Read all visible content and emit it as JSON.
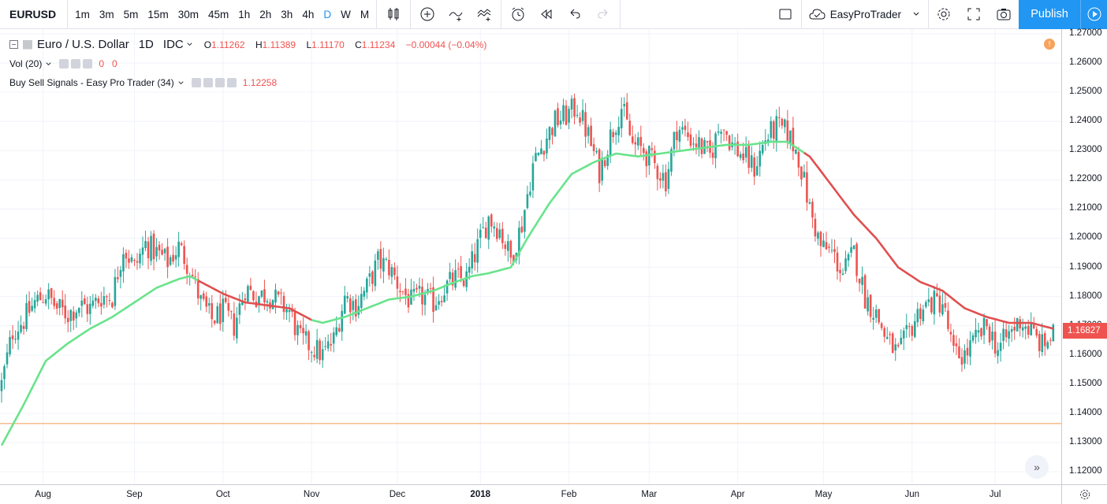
{
  "toolbar": {
    "symbol": "EURUSD",
    "intervals": [
      "1m",
      "3m",
      "5m",
      "15m",
      "30m",
      "45m",
      "1h",
      "2h",
      "3h",
      "4h",
      "D",
      "W",
      "M"
    ],
    "active_interval": "D",
    "layout_name": "EasyProTrader",
    "publish_label": "Publish",
    "icons": [
      "candle-style-icon",
      "add-indicator-icon",
      "compare-icon",
      "indicators-icon",
      "alert-icon",
      "replay-icon",
      "undo-icon",
      "redo-icon"
    ]
  },
  "legend": {
    "title": "Euro / U.S. Dollar",
    "interval": "1D",
    "exchange": "IDC",
    "open_label": "O",
    "open": "1.11262",
    "high_label": "H",
    "high": "1.11389",
    "low_label": "L",
    "low": "1.11170",
    "close_label": "C",
    "close": "1.11234",
    "change": "−0.00044 (−0.04%)",
    "vol_label": "Vol (20)",
    "vol_value1": "0",
    "vol_value2": "0",
    "indicator_label": "Buy Sell Signals - Easy Pro Trader (34)",
    "indicator_value": "1.12258"
  },
  "last_price": "1.16827",
  "colors": {
    "up": "#26a69a",
    "down": "#ef5350",
    "ma_bull": "#69e38b",
    "ma_bear": "#e04f4f",
    "accent": "#2196f3",
    "hline": "#f19a52"
  },
  "chart_data": {
    "type": "candlestick",
    "ylim": [
      1.115,
      1.27
    ],
    "price_ticks": [
      "1.27000",
      "1.26000",
      "1.25000",
      "1.24000",
      "1.23000",
      "1.22000",
      "1.21000",
      "1.20000",
      "1.19000",
      "1.18000",
      "1.17000",
      "1.16000",
      "1.15000",
      "1.14000",
      "1.13000",
      "1.12000"
    ],
    "time_ticks": [
      {
        "label": "Aug",
        "bar": 15
      },
      {
        "label": "Sep",
        "bar": 48
      },
      {
        "label": "Oct",
        "bar": 80
      },
      {
        "label": "Nov",
        "bar": 112
      },
      {
        "label": "Dec",
        "bar": 143
      },
      {
        "label": "2018",
        "bar": 173,
        "bold": true
      },
      {
        "label": "Feb",
        "bar": 205
      },
      {
        "label": "Mar",
        "bar": 234
      },
      {
        "label": "Apr",
        "bar": 266
      },
      {
        "label": "May",
        "bar": 297
      },
      {
        "label": "Jun",
        "bar": 329
      },
      {
        "label": "Jul",
        "bar": 359
      }
    ],
    "horizontal_line": 1.1365,
    "close_anchors": [
      [
        0,
        1.15
      ],
      [
        4,
        1.168
      ],
      [
        8,
        1.172
      ],
      [
        12,
        1.178
      ],
      [
        16,
        1.181
      ],
      [
        20,
        1.176
      ],
      [
        24,
        1.174
      ],
      [
        28,
        1.177
      ],
      [
        32,
        1.176
      ],
      [
        36,
        1.18
      ],
      [
        40,
        1.18
      ],
      [
        44,
        1.197
      ],
      [
        48,
        1.19
      ],
      [
        52,
        1.198
      ],
      [
        56,
        1.195
      ],
      [
        60,
        1.192
      ],
      [
        64,
        1.197
      ],
      [
        68,
        1.19
      ],
      [
        72,
        1.178
      ],
      [
        76,
        1.172
      ],
      [
        80,
        1.175
      ],
      [
        84,
        1.17
      ],
      [
        88,
        1.183
      ],
      [
        92,
        1.18
      ],
      [
        96,
        1.181
      ],
      [
        100,
        1.178
      ],
      [
        104,
        1.175
      ],
      [
        108,
        1.165
      ],
      [
        112,
        1.163
      ],
      [
        116,
        1.16
      ],
      [
        120,
        1.165
      ],
      [
        124,
        1.18
      ],
      [
        128,
        1.177
      ],
      [
        132,
        1.183
      ],
      [
        136,
        1.192
      ],
      [
        140,
        1.19
      ],
      [
        144,
        1.183
      ],
      [
        148,
        1.178
      ],
      [
        152,
        1.18
      ],
      [
        156,
        1.178
      ],
      [
        160,
        1.183
      ],
      [
        164,
        1.186
      ],
      [
        168,
        1.186
      ],
      [
        172,
        1.197
      ],
      [
        176,
        1.207
      ],
      [
        180,
        1.203
      ],
      [
        184,
        1.193
      ],
      [
        188,
        1.205
      ],
      [
        192,
        1.225
      ],
      [
        196,
        1.233
      ],
      [
        200,
        1.24
      ],
      [
        204,
        1.242
      ],
      [
        208,
        1.245
      ],
      [
        212,
        1.235
      ],
      [
        216,
        1.223
      ],
      [
        220,
        1.235
      ],
      [
        224,
        1.245
      ],
      [
        228,
        1.232
      ],
      [
        232,
        1.23
      ],
      [
        236,
        1.225
      ],
      [
        240,
        1.22
      ],
      [
        244,
        1.238
      ],
      [
        248,
        1.235
      ],
      [
        252,
        1.232
      ],
      [
        256,
        1.228
      ],
      [
        260,
        1.24
      ],
      [
        264,
        1.232
      ],
      [
        268,
        1.228
      ],
      [
        272,
        1.224
      ],
      [
        276,
        1.234
      ],
      [
        280,
        1.238
      ],
      [
        284,
        1.236
      ],
      [
        288,
        1.228
      ],
      [
        292,
        1.21
      ],
      [
        296,
        1.197
      ],
      [
        300,
        1.195
      ],
      [
        304,
        1.188
      ],
      [
        308,
        1.195
      ],
      [
        312,
        1.18
      ],
      [
        316,
        1.174
      ],
      [
        320,
        1.165
      ],
      [
        324,
        1.16
      ],
      [
        328,
        1.168
      ],
      [
        332,
        1.176
      ],
      [
        336,
        1.178
      ],
      [
        340,
        1.178
      ],
      [
        344,
        1.16
      ],
      [
        348,
        1.16
      ],
      [
        352,
        1.165
      ],
      [
        356,
        1.17
      ],
      [
        360,
        1.162
      ],
      [
        364,
        1.167
      ],
      [
        368,
        1.172
      ],
      [
        372,
        1.168
      ],
      [
        376,
        1.163
      ],
      [
        380,
        1.167
      ]
    ],
    "ma_anchors": [
      [
        0,
        1.129
      ],
      [
        8,
        1.143
      ],
      [
        16,
        1.158
      ],
      [
        24,
        1.164
      ],
      [
        32,
        1.169
      ],
      [
        40,
        1.173
      ],
      [
        48,
        1.178
      ],
      [
        56,
        1.183
      ],
      [
        64,
        1.186
      ],
      [
        68,
        1.187
      ],
      [
        72,
        1.185
      ],
      [
        80,
        1.181
      ],
      [
        88,
        1.178
      ],
      [
        96,
        1.177
      ],
      [
        104,
        1.176
      ],
      [
        112,
        1.172
      ],
      [
        116,
        1.171
      ],
      [
        124,
        1.173
      ],
      [
        132,
        1.176
      ],
      [
        140,
        1.179
      ],
      [
        148,
        1.18
      ],
      [
        156,
        1.182
      ],
      [
        164,
        1.185
      ],
      [
        170,
        1.187
      ],
      [
        176,
        1.188
      ],
      [
        184,
        1.19
      ],
      [
        190,
        1.2
      ],
      [
        198,
        1.212
      ],
      [
        206,
        1.222
      ],
      [
        214,
        1.226
      ],
      [
        222,
        1.229
      ],
      [
        230,
        1.228
      ],
      [
        238,
        1.229
      ],
      [
        246,
        1.23
      ],
      [
        254,
        1.231
      ],
      [
        262,
        1.232
      ],
      [
        270,
        1.232
      ],
      [
        278,
        1.233
      ],
      [
        284,
        1.233
      ],
      [
        292,
        1.228
      ],
      [
        300,
        1.218
      ],
      [
        308,
        1.208
      ],
      [
        316,
        1.2
      ],
      [
        324,
        1.19
      ],
      [
        332,
        1.185
      ],
      [
        340,
        1.182
      ],
      [
        348,
        1.176
      ],
      [
        356,
        1.173
      ],
      [
        364,
        1.171
      ],
      [
        372,
        1.171
      ],
      [
        380,
        1.169
      ]
    ],
    "ma_bull_segments": [
      [
        0,
        70
      ],
      [
        112,
        289
      ]
    ]
  }
}
